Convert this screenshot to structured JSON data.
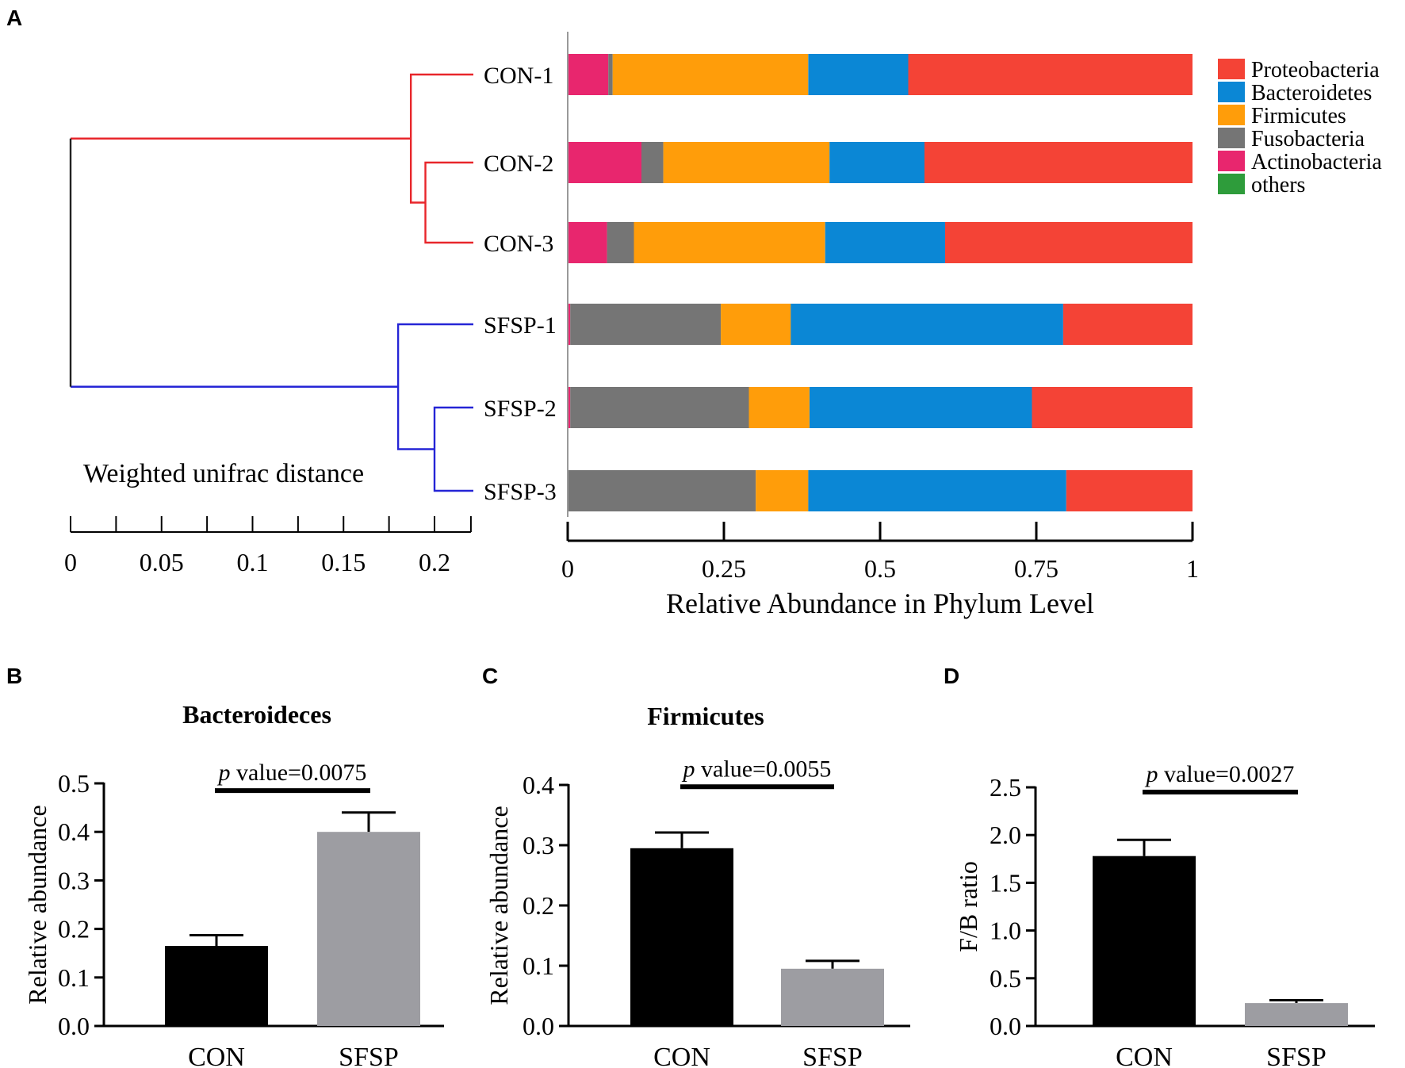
{
  "panel_labels": {
    "a": "A",
    "b": "B",
    "c": "C",
    "d": "D"
  },
  "colors": {
    "proteobacteria": "#f44336",
    "bacteroidetes": "#0b87d5",
    "firmicutes": "#ff9d0a",
    "fusobacteria": "#757575",
    "actinobacteria": "#e8266e",
    "others": "#2e9c3b",
    "con_tree": "#e8262b",
    "sfsp_tree": "#2525d6",
    "root_line": "#222222",
    "con_bar": "#000000",
    "sfsp_bar": "#9d9da2"
  },
  "chart_data": [
    {
      "id": "dendrogram",
      "type": "dendrogram",
      "title": "Weighted unifrac distance",
      "xlim": [
        0,
        0.22
      ],
      "ticks": [
        "0",
        "0.05",
        "0.1",
        "0.15",
        "0.2"
      ],
      "tick_values": [
        0,
        0.05,
        0.1,
        0.15,
        0.2
      ],
      "minor_ticks": [
        0.025,
        0.075,
        0.125,
        0.175,
        0.22
      ],
      "leaves": [
        "CON-1",
        "CON-2",
        "CON-3",
        "SFSP-1",
        "SFSP-2",
        "SFSP-3"
      ],
      "merges": [
        {
          "group": "con",
          "children": [
            "CON-2",
            "CON-3"
          ],
          "height": 0.195
        },
        {
          "group": "con",
          "children": [
            "CON-1",
            "CON-2|CON-3"
          ],
          "height": 0.187
        },
        {
          "group": "sfsp",
          "children": [
            "SFSP-2",
            "SFSP-3"
          ],
          "height": 0.2
        },
        {
          "group": "sfsp",
          "children": [
            "SFSP-1",
            "SFSP-2|SFSP-3"
          ],
          "height": 0.18
        },
        {
          "group": "root",
          "children": [
            "CON",
            "SFSP"
          ],
          "height": 0.0
        }
      ]
    },
    {
      "id": "phylum",
      "type": "bar",
      "orientation": "horizontal-stacked",
      "xlabel": "Relative Abundance in Phylum Level",
      "xlim": [
        0,
        1
      ],
      "ticks": [
        "0",
        "0.25",
        "0.5",
        "0.75",
        "1"
      ],
      "tick_values": [
        0,
        0.25,
        0.5,
        0.75,
        1
      ],
      "categories": [
        "CON-1",
        "CON-2",
        "CON-3",
        "SFSP-1",
        "SFSP-2",
        "SFSP-3"
      ],
      "stack_order": [
        "Actinobacteria",
        "Fusobacteria",
        "Firmicutes",
        "Bacteroidetes",
        "Proteobacteria",
        "others"
      ],
      "legend_order": [
        "Proteobacteria",
        "Bacteroidetes",
        "Firmicutes",
        "Fusobacteria",
        "Actinobacteria",
        "others"
      ],
      "legend_position": "top-right",
      "series": [
        {
          "name": "Actinobacteria",
          "key": "actinobacteria",
          "values": [
            0.065,
            0.118,
            0.063,
            0.004,
            0.004,
            0.001
          ]
        },
        {
          "name": "Fusobacteria",
          "key": "fusobacteria",
          "values": [
            0.007,
            0.035,
            0.043,
            0.241,
            0.286,
            0.3
          ]
        },
        {
          "name": "Firmicutes",
          "key": "firmicutes",
          "values": [
            0.313,
            0.266,
            0.306,
            0.112,
            0.097,
            0.084
          ]
        },
        {
          "name": "Bacteroidetes",
          "key": "bacteroidetes",
          "values": [
            0.16,
            0.152,
            0.192,
            0.436,
            0.356,
            0.413
          ]
        },
        {
          "name": "Proteobacteria",
          "key": "proteobacteria",
          "values": [
            0.455,
            0.429,
            0.396,
            0.207,
            0.257,
            0.202
          ]
        },
        {
          "name": "others",
          "key": "others",
          "values": [
            0,
            0,
            0,
            0,
            0,
            0
          ]
        }
      ]
    },
    {
      "id": "bacteroidetes_bar",
      "type": "bar",
      "title": "Bacteroideces",
      "ylabel": "Relative abundance",
      "ylim": [
        0,
        0.5
      ],
      "ticks": [
        "0.0",
        "0.1",
        "0.2",
        "0.3",
        "0.4",
        "0.5"
      ],
      "tick_values": [
        0,
        0.1,
        0.2,
        0.3,
        0.4,
        0.5
      ],
      "categories": [
        "CON",
        "SFSP"
      ],
      "values": [
        0.165,
        0.4
      ],
      "errors": [
        0.022,
        0.04
      ],
      "annotation_p": "p",
      "annotation": " value=0.0075",
      "bracket_y": 0.485
    },
    {
      "id": "firmicutes_bar",
      "type": "bar",
      "title": "Firmicutes",
      "ylabel": "Relative abundance",
      "ylim": [
        0,
        0.4
      ],
      "ticks": [
        "0.0",
        "0.1",
        "0.2",
        "0.3",
        "0.4"
      ],
      "tick_values": [
        0,
        0.1,
        0.2,
        0.3,
        0.4
      ],
      "categories": [
        "CON",
        "SFSP"
      ],
      "values": [
        0.295,
        0.095
      ],
      "errors": [
        0.026,
        0.013
      ],
      "annotation_p": "p",
      "annotation": " value=0.0055",
      "bracket_y": 0.397
    },
    {
      "id": "fb_ratio_bar",
      "type": "bar",
      "title": "",
      "ylabel": "F/B ratio",
      "ylim": [
        0,
        2.5
      ],
      "ticks": [
        "0.0",
        "0.5",
        "1.0",
        "1.5",
        "2.0",
        "2.5"
      ],
      "tick_values": [
        0,
        0.5,
        1.0,
        1.5,
        2.0,
        2.5
      ],
      "categories": [
        "CON",
        "SFSP"
      ],
      "values": [
        1.78,
        0.24
      ],
      "errors": [
        0.17,
        0.03
      ],
      "annotation_p": "p",
      "annotation": " value=0.0027",
      "bracket_y": 2.45
    }
  ]
}
